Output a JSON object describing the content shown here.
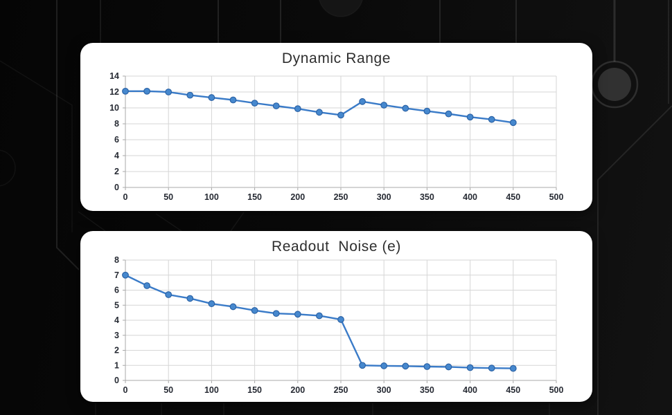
{
  "chart_data": [
    {
      "type": "line",
      "title": "Dynamic Range",
      "x": [
        0,
        25,
        50,
        75,
        100,
        125,
        150,
        175,
        200,
        225,
        250,
        275,
        300,
        325,
        350,
        375,
        400,
        425,
        450
      ],
      "values": [
        12.1,
        12.1,
        12.0,
        11.6,
        11.3,
        11.0,
        10.6,
        10.25,
        9.9,
        9.45,
        9.1,
        10.8,
        10.35,
        9.95,
        9.6,
        9.25,
        8.85,
        8.55,
        8.15
      ],
      "xlabel": "",
      "ylabel": "",
      "xlim": [
        0,
        500
      ],
      "ylim": [
        0,
        14
      ],
      "x_tick_step": 50,
      "y_tick_step": 2,
      "grid": true,
      "legend": "none"
    },
    {
      "type": "line",
      "title": "Readout  Noise (e)",
      "x": [
        0,
        25,
        50,
        75,
        100,
        125,
        150,
        175,
        200,
        225,
        250,
        275,
        300,
        325,
        350,
        375,
        400,
        425,
        450
      ],
      "values": [
        7.0,
        6.3,
        5.7,
        5.45,
        5.1,
        4.9,
        4.65,
        4.45,
        4.4,
        4.3,
        4.05,
        1.0,
        0.97,
        0.95,
        0.92,
        0.9,
        0.85,
        0.82,
        0.8
      ],
      "xlabel": "",
      "ylabel": "",
      "xlim": [
        0,
        500
      ],
      "ylim": [
        0,
        8
      ],
      "x_tick_step": 50,
      "y_tick_step": 1,
      "grid": true,
      "legend": "none"
    }
  ],
  "style": {
    "line_color": "#3a7bc8",
    "marker_fill": "#4688ce",
    "marker_stroke": "#2b62a5",
    "grid_color": "#d6d6d6",
    "axis_color": "#a8a8a8",
    "tick_label_color": "#262a33",
    "title_color": "#2e2e2e",
    "card_background": "#ffffff",
    "page_background": "#0a0a0a",
    "circuit_trace_color": "#2e2e2e"
  }
}
